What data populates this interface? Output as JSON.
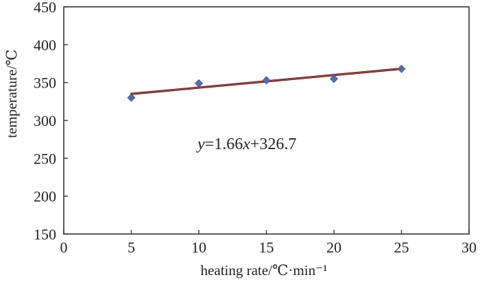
{
  "chart_data": {
    "type": "scatter",
    "xlabel": "heating rate/℃·min⁻¹",
    "ylabel": "temperature/℃",
    "xlim": [
      0,
      30
    ],
    "ylim": [
      150,
      450
    ],
    "x_ticks": [
      0,
      5,
      10,
      15,
      20,
      25,
      30
    ],
    "y_ticks": [
      150,
      200,
      250,
      300,
      350,
      400,
      450
    ],
    "x_tick_labels": [
      "0",
      "5",
      "10",
      "15",
      "20",
      "25",
      "30"
    ],
    "y_tick_labels": [
      "150",
      "200",
      "250",
      "300",
      "350",
      "400",
      "450"
    ],
    "grid": false,
    "series": [
      {
        "x": [
          5,
          10,
          15,
          20,
          25
        ],
        "y": [
          330,
          349,
          353,
          355,
          368
        ],
        "marker": "diamond",
        "color": "#4f6fb0"
      }
    ],
    "fit_line": {
      "slope": 1.66,
      "intercept": 326.7,
      "x_range": [
        5,
        25
      ],
      "color": "#b53a3a"
    },
    "annotations": [
      {
        "text_parts": [
          {
            "text": "y",
            "italic": true
          },
          {
            "text": "=1.66",
            "italic": false
          },
          {
            "text": "x",
            "italic": true
          },
          {
            "text": "+326.7",
            "italic": false
          }
        ]
      }
    ]
  }
}
